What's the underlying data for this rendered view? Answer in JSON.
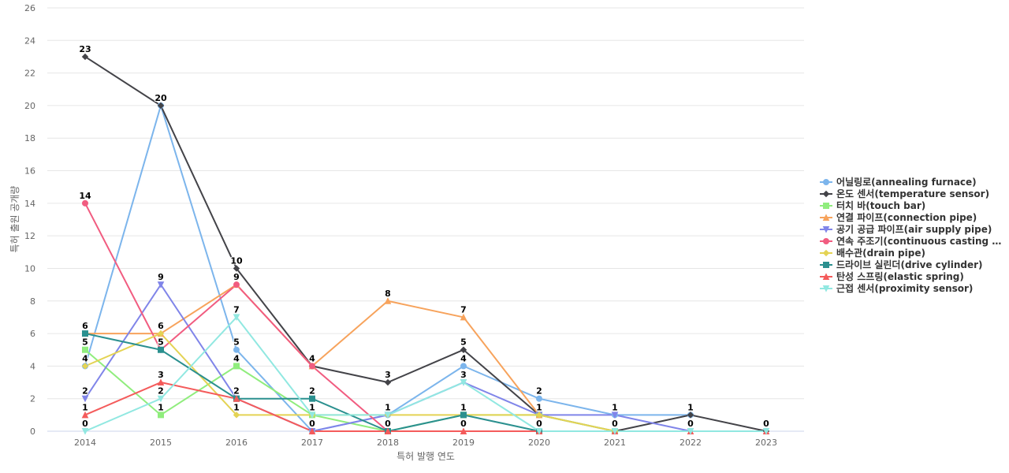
{
  "chart_data": {
    "type": "line",
    "xlabel": "특허 발행 연도",
    "ylabel": "특허 출원 공개량",
    "ylim": [
      0,
      26
    ],
    "yticks": [
      0,
      2,
      4,
      6,
      8,
      10,
      12,
      14,
      16,
      18,
      20,
      22,
      24,
      26
    ],
    "grid": true,
    "legend_position": "right",
    "categories": [
      "2014",
      "2015",
      "2016",
      "2017",
      "2018",
      "2019",
      "2020",
      "2021",
      "2022",
      "2023"
    ],
    "series": [
      {
        "name": "어닐링로(annealing furnace)",
        "color": "#7cb5ec",
        "marker": "circle",
        "values": [
          4,
          20,
          5,
          0,
          1,
          4,
          2,
          1,
          1,
          null
        ]
      },
      {
        "name": "온도 센서(temperature sensor)",
        "color": "#434348",
        "marker": "diamond",
        "values": [
          23,
          20,
          10,
          4,
          3,
          5,
          1,
          0,
          1,
          0
        ]
      },
      {
        "name": "터치 바(touch bar)",
        "color": "#90ed7d",
        "marker": "square",
        "values": [
          5,
          1,
          4,
          1,
          0,
          1,
          1,
          0,
          null,
          null
        ]
      },
      {
        "name": "연결 파이프(connection pipe)",
        "color": "#f7a35c",
        "marker": "triangle",
        "values": [
          6,
          6,
          9,
          4,
          8,
          7,
          1,
          null,
          null,
          null
        ]
      },
      {
        "name": "공기 공급 파이프(air supply pipe)",
        "color": "#8085e9",
        "marker": "triangle-down",
        "values": [
          2,
          9,
          2,
          0,
          1,
          3,
          1,
          1,
          0,
          null
        ]
      },
      {
        "name": "연속 주조기(continuous casting m...",
        "color": "#f15c80",
        "marker": "circle",
        "values": [
          14,
          5,
          9,
          4,
          0,
          null,
          null,
          null,
          null,
          null
        ]
      },
      {
        "name": "배수관(drain pipe)",
        "color": "#e4d354",
        "marker": "diamond",
        "values": [
          4,
          6,
          1,
          1,
          1,
          1,
          1,
          0,
          null,
          null
        ]
      },
      {
        "name": "드라이브 실린더(drive cylinder)",
        "color": "#2b908f",
        "marker": "square",
        "values": [
          6,
          5,
          2,
          2,
          0,
          1,
          0,
          null,
          null,
          null
        ]
      },
      {
        "name": "탄성 스프링(elastic spring)",
        "color": "#f45b5b",
        "marker": "triangle",
        "values": [
          1,
          3,
          2,
          0,
          0,
          0,
          0,
          0,
          0,
          0
        ]
      },
      {
        "name": "근접 센서(proximity sensor)",
        "color": "#91e8e1",
        "marker": "triangle-down",
        "values": [
          0,
          2,
          7,
          1,
          1,
          3,
          0,
          0,
          0,
          0
        ]
      }
    ],
    "data_labels": [
      {
        "x": "2014",
        "text": "23",
        "y": 23
      },
      {
        "x": "2014",
        "text": "14",
        "y": 14
      },
      {
        "x": "2014",
        "text": "6",
        "y": 6
      },
      {
        "x": "2014",
        "text": "5",
        "y": 5
      },
      {
        "x": "2014",
        "text": "4",
        "y": 4
      },
      {
        "x": "2014",
        "text": "2",
        "y": 2
      },
      {
        "x": "2014",
        "text": "1",
        "y": 1
      },
      {
        "x": "2014",
        "text": "0",
        "y": 0
      },
      {
        "x": "2015",
        "text": "20",
        "y": 20
      },
      {
        "x": "2015",
        "text": "9",
        "y": 9
      },
      {
        "x": "2015",
        "text": "6",
        "y": 6
      },
      {
        "x": "2015",
        "text": "5",
        "y": 5
      },
      {
        "x": "2015",
        "text": "3",
        "y": 3
      },
      {
        "x": "2015",
        "text": "2",
        "y": 2
      },
      {
        "x": "2015",
        "text": "1",
        "y": 1
      },
      {
        "x": "2016",
        "text": "10",
        "y": 10
      },
      {
        "x": "2016",
        "text": "9",
        "y": 9
      },
      {
        "x": "2016",
        "text": "7",
        "y": 7
      },
      {
        "x": "2016",
        "text": "5",
        "y": 5
      },
      {
        "x": "2016",
        "text": "4",
        "y": 4
      },
      {
        "x": "2016",
        "text": "2",
        "y": 2
      },
      {
        "x": "2016",
        "text": "1",
        "y": 1
      },
      {
        "x": "2017",
        "text": "4",
        "y": 4
      },
      {
        "x": "2017",
        "text": "2",
        "y": 2
      },
      {
        "x": "2017",
        "text": "1",
        "y": 1
      },
      {
        "x": "2017",
        "text": "0",
        "y": 0
      },
      {
        "x": "2018",
        "text": "8",
        "y": 8
      },
      {
        "x": "2018",
        "text": "3",
        "y": 3
      },
      {
        "x": "2018",
        "text": "1",
        "y": 1
      },
      {
        "x": "2018",
        "text": "0",
        "y": 0
      },
      {
        "x": "2019",
        "text": "7",
        "y": 7
      },
      {
        "x": "2019",
        "text": "5",
        "y": 5
      },
      {
        "x": "2019",
        "text": "4",
        "y": 4
      },
      {
        "x": "2019",
        "text": "3",
        "y": 3
      },
      {
        "x": "2019",
        "text": "1",
        "y": 1
      },
      {
        "x": "2019",
        "text": "0",
        "y": 0
      },
      {
        "x": "2020",
        "text": "2",
        "y": 2
      },
      {
        "x": "2020",
        "text": "1",
        "y": 1
      },
      {
        "x": "2020",
        "text": "0",
        "y": 0
      },
      {
        "x": "2021",
        "text": "1",
        "y": 1
      },
      {
        "x": "2021",
        "text": "0",
        "y": 0
      },
      {
        "x": "2022",
        "text": "1",
        "y": 1
      },
      {
        "x": "2022",
        "text": "0",
        "y": 0
      },
      {
        "x": "2023",
        "text": "0",
        "y": 0
      }
    ]
  }
}
